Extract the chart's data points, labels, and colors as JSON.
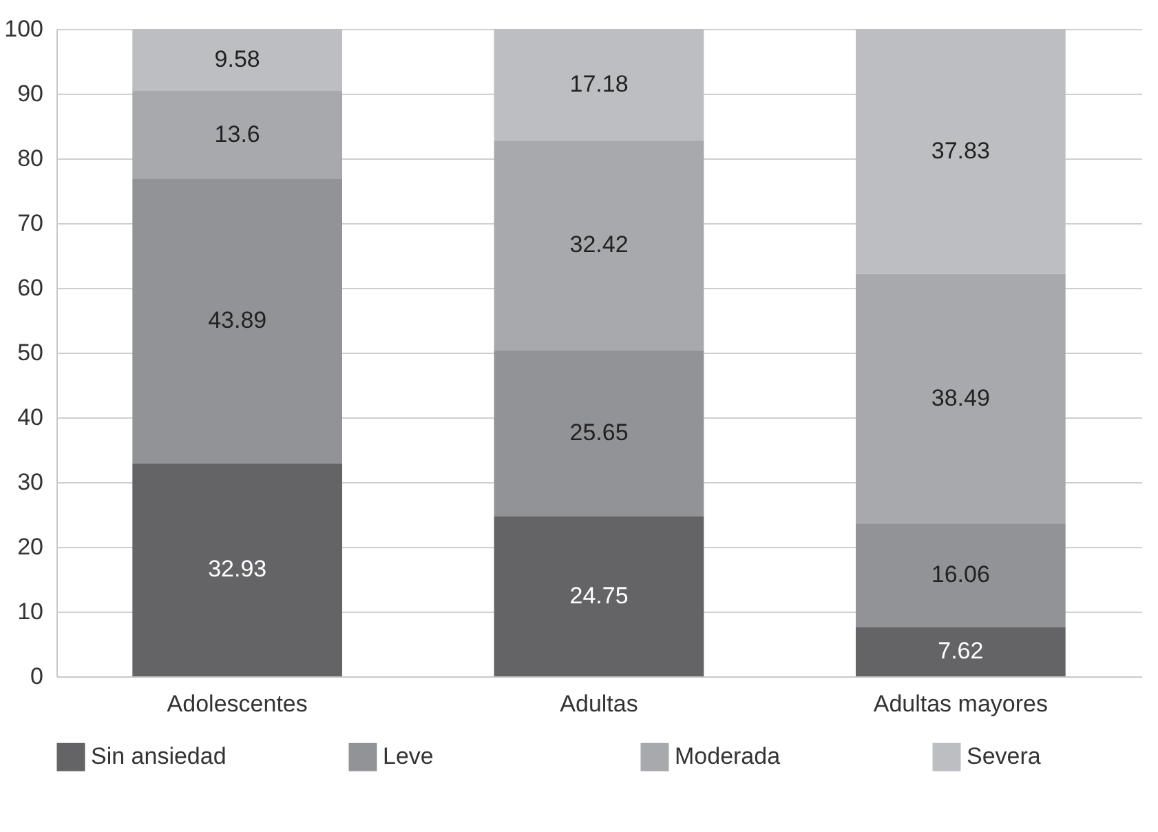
{
  "chart_data": {
    "type": "bar",
    "stacked": true,
    "data_labels": true,
    "grid": "y",
    "legend": "bottom",
    "categories": [
      "Adolescentes",
      "Adultas",
      "Adultas mayores"
    ],
    "ylim": [
      0,
      100
    ],
    "yticks": [
      0,
      10,
      20,
      30,
      40,
      50,
      60,
      70,
      80,
      90,
      100
    ],
    "series": [
      {
        "name": "Sin ansiedad",
        "color": "#646466",
        "values": [
          32.93,
          24.75,
          7.62
        ]
      },
      {
        "name": "Leve",
        "color": "#929396",
        "values": [
          43.89,
          25.65,
          16.06
        ]
      },
      {
        "name": "Moderada",
        "color": "#a8a9ac",
        "values": [
          13.6,
          32.42,
          38.49
        ]
      },
      {
        "name": "Severa",
        "color": "#bdbec1",
        "values": [
          9.58,
          17.18,
          37.83
        ]
      }
    ]
  }
}
